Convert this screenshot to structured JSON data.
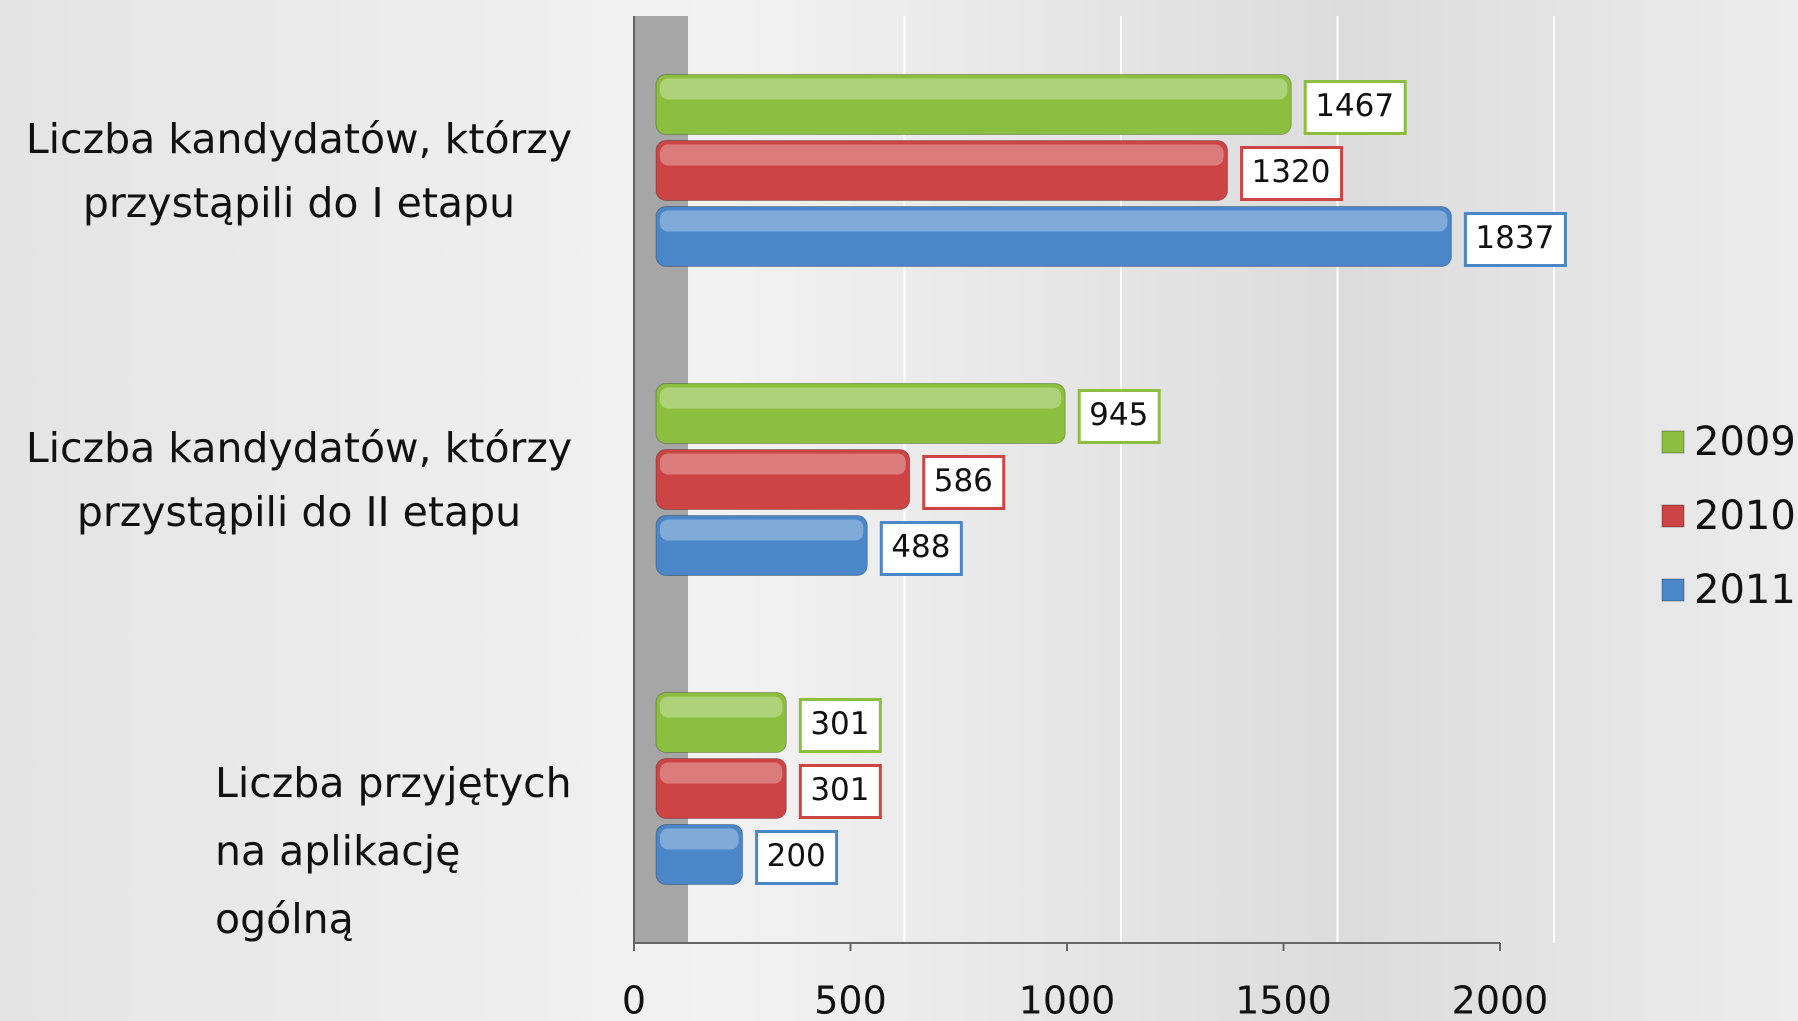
{
  "chart_data": {
    "type": "bar",
    "orientation": "horizontal",
    "categories": [
      "Liczba kandydatów, którzy przystąpili do I etapu",
      "Liczba kandydatów, którzy przystąpili do II etapu",
      "Liczba przyjętych na aplikację ogólną"
    ],
    "series": [
      {
        "name": "2009",
        "color": "#8cbf3f",
        "values": [
          1467,
          945,
          301
        ]
      },
      {
        "name": "2010",
        "color": "#cc4444",
        "values": [
          1320,
          586,
          301
        ]
      },
      {
        "name": "2011",
        "color": "#4a86c8",
        "values": [
          1837,
          488,
          200
        ]
      }
    ],
    "xlim": [
      0,
      2000
    ],
    "xticks": [
      0,
      500,
      1000,
      1500,
      2000
    ],
    "grid": true,
    "legend": "right"
  }
}
